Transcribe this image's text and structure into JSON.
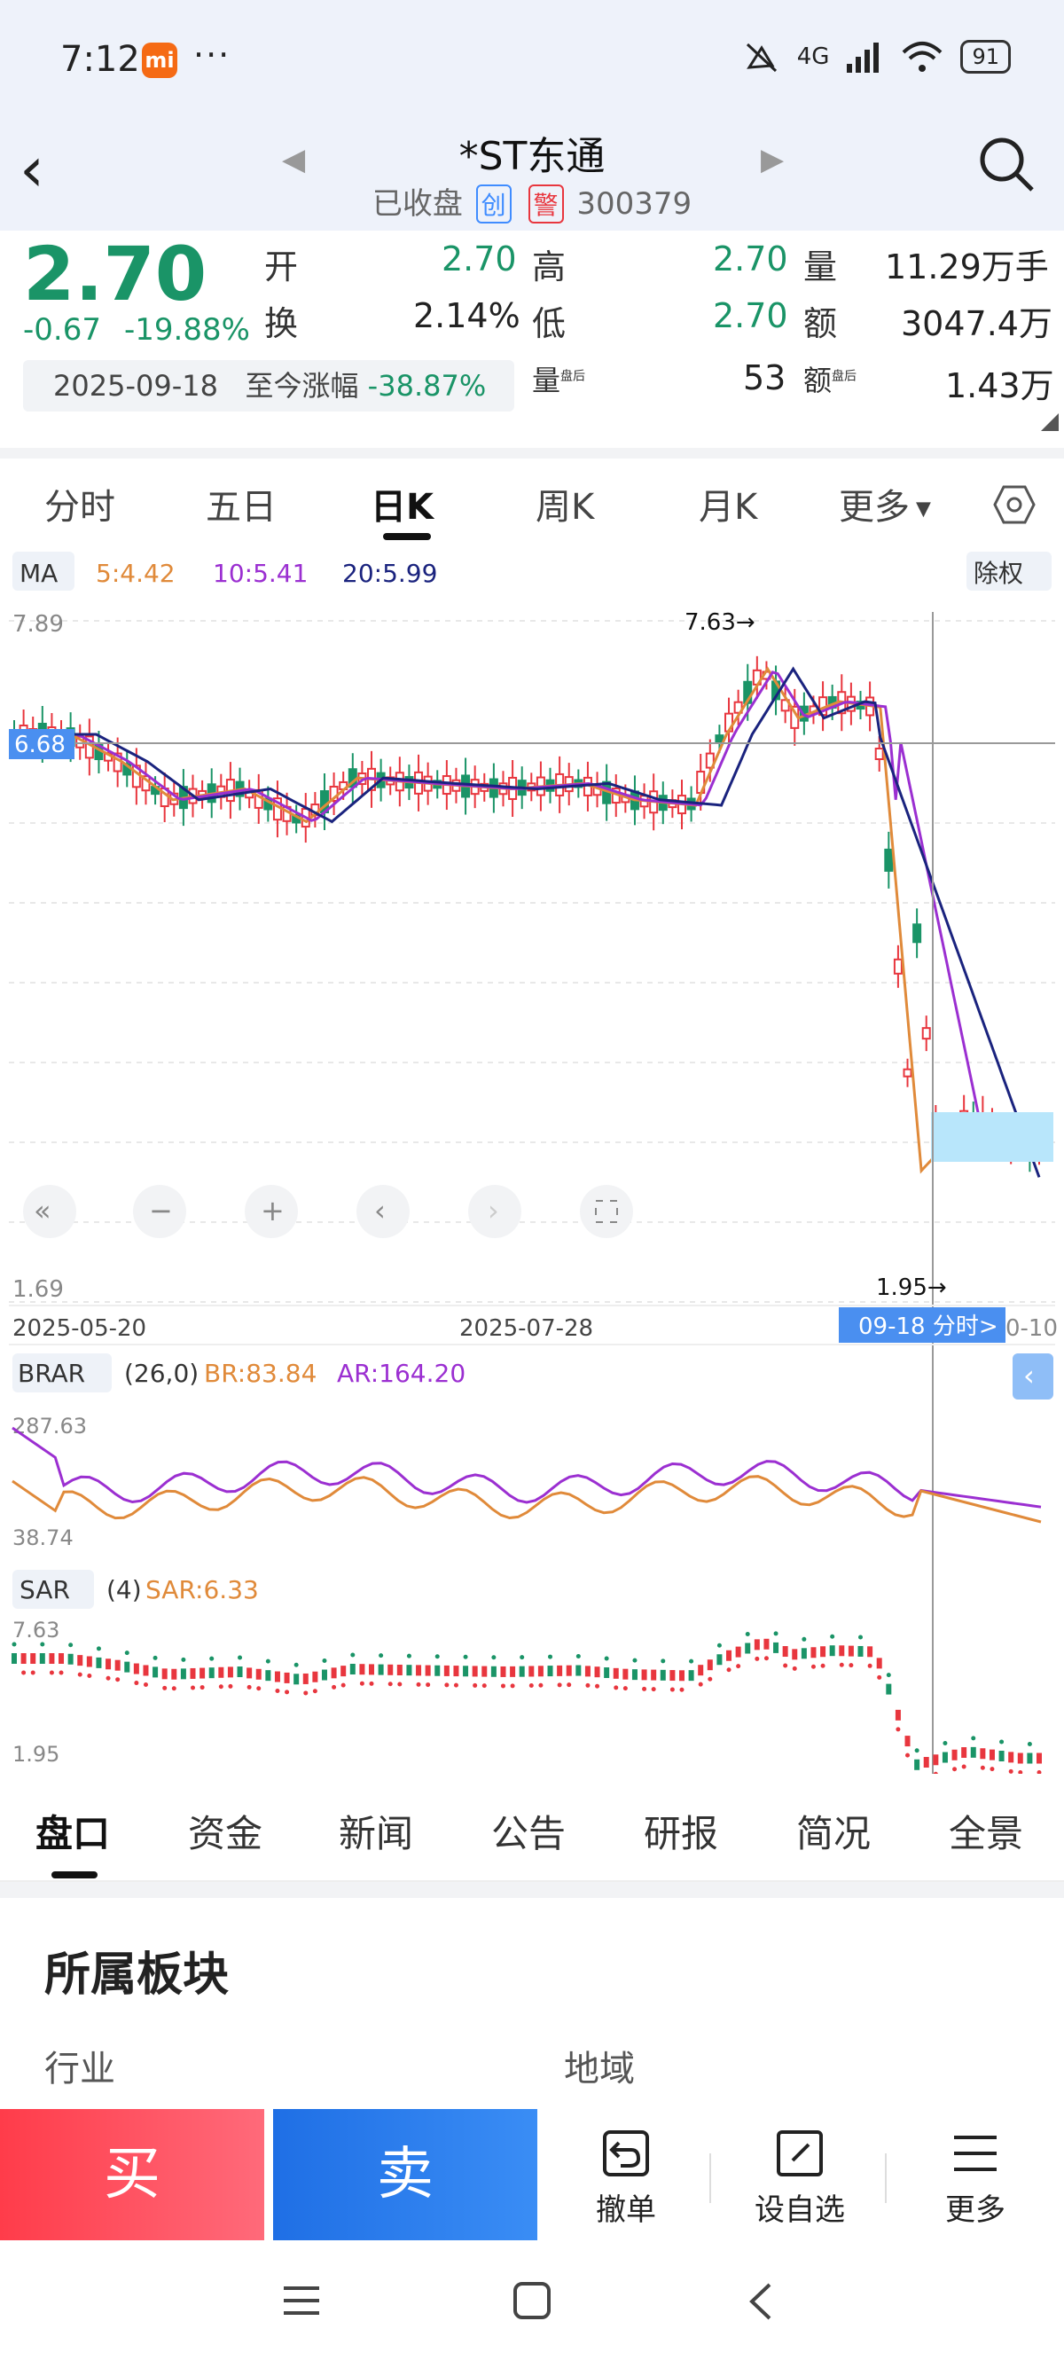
{
  "status": {
    "time": "7:12",
    "mi": "mi",
    "dots": "···",
    "network": "4G",
    "battery": "91"
  },
  "header": {
    "title": "*ST东通",
    "status": "已收盘",
    "tag1": "创",
    "tag2": "警",
    "code": "300379"
  },
  "quote": {
    "price": "2.70",
    "change": "-0.67",
    "change_pct": "-19.88%",
    "open_label": "开",
    "open": "2.70",
    "high_label": "高",
    "high": "2.70",
    "vol_label": "量",
    "vol": "11.29万手",
    "turn_label": "换",
    "turn": "2.14%",
    "low_label": "低",
    "low": "2.70",
    "amt_label": "额",
    "amt": "3047.4万",
    "date": "2025-09-18",
    "since_label": "至今涨幅",
    "since": "-38.87%",
    "after_vol_label": "量",
    "after_vol": "53",
    "after_amt_label": "额",
    "after_amt": "1.43万",
    "after_tag": "盘后"
  },
  "tabs": [
    "分时",
    "五日",
    "日K",
    "周K",
    "月K",
    "更多"
  ],
  "ma": {
    "label": "MA",
    "ma5": "5:4.42",
    "ma10": "10:5.41",
    "ma20": "20:5.99",
    "adjust": "除权"
  },
  "chart_data": [
    {
      "type": "candlestick",
      "title": "日K",
      "ylim": [
        1.69,
        7.89
      ],
      "yticks": [
        "7.89",
        "1.69"
      ],
      "crosshair_price": "6.68",
      "xlabels": [
        "2025-05-20",
        "2025-07-28"
      ],
      "crosshair_date": "09-18 分时>",
      "last_label": "0-10",
      "high_mark": "7.63→",
      "low_mark": "1.95→",
      "series": [
        {
          "name": "MA5",
          "color": "#e08a3a"
        },
        {
          "name": "MA10",
          "color": "#9b2fd1"
        },
        {
          "name": "MA20",
          "color": "#1a237e"
        }
      ]
    },
    {
      "type": "line",
      "indicator": "BRAR",
      "params": "(26,0)",
      "br": "BR:83.84",
      "ar": "AR:164.20",
      "ylim": [
        38.74,
        287.63
      ],
      "yticks": [
        "287.63",
        "38.74"
      ]
    },
    {
      "type": "scatter",
      "indicator": "SAR",
      "params": "(4)",
      "sar": "SAR:6.33",
      "ylim": [
        1.95,
        7.63
      ],
      "yticks": [
        "7.63",
        "1.95"
      ]
    }
  ],
  "bottom_tabs": [
    "盘口",
    "资金",
    "新闻",
    "公告",
    "研报",
    "简况",
    "全景"
  ],
  "section": {
    "title": "所属板块",
    "industry": "行业",
    "region": "地域"
  },
  "actions": {
    "buy": "买",
    "sell": "卖",
    "cancel": "撤单",
    "watch": "设自选",
    "more": "更多"
  },
  "colors": {
    "up": "#e8363e",
    "down": "#1a9467",
    "accent": "#3f8cff"
  }
}
